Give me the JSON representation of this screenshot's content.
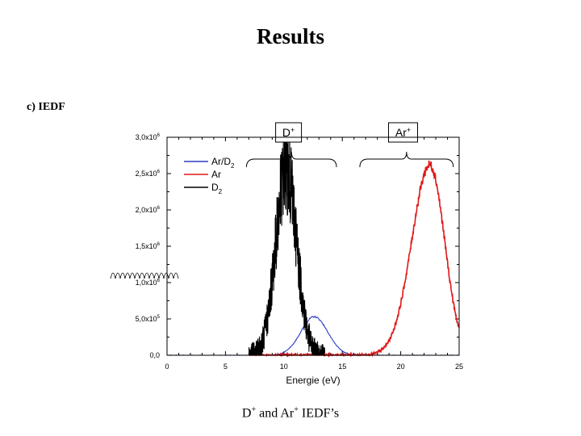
{
  "slide": {
    "title": "Results",
    "subtitle": "c) IEDF",
    "caption_text": "and",
    "caption_d": "D",
    "caption_ar": "Ar",
    "caption_plus": "+",
    "caption_end": "IEDF’s"
  },
  "chart_data": {
    "type": "line",
    "title": "",
    "xlabel": "Energie (eV)",
    "ylabel": "",
    "xlim": [
      0,
      25
    ],
    "ylim": [
      0,
      3000000
    ],
    "grid": false,
    "legend_position": "top-left",
    "x_ticks": [
      0,
      5,
      10,
      15,
      20,
      25
    ],
    "x_tick_labels": [
      "0",
      "5",
      "10",
      "15",
      "20",
      "25"
    ],
    "y_ticks": [
      0,
      500000,
      1000000,
      1500000,
      2000000,
      2500000,
      3000000
    ],
    "y_tick_labels": [
      {
        "mantissa": "0,0",
        "exp": ""
      },
      {
        "mantissa": "5,0x10",
        "exp": "5"
      },
      {
        "mantissa": "1,0x10",
        "exp": "6"
      },
      {
        "mantissa": "1,5x10",
        "exp": "6"
      },
      {
        "mantissa": "2,0x10",
        "exp": "6"
      },
      {
        "mantissa": "2,5x10",
        "exp": "6"
      },
      {
        "mantissa": "3,0x10",
        "exp": "6"
      }
    ],
    "series": [
      {
        "name": "Ar/D",
        "subscript": "2",
        "color": "#2b3fc4",
        "shape": "gauss",
        "center": 12.6,
        "sigma": 1.15,
        "peak": 530000,
        "noise": 0.015
      },
      {
        "name": "Ar",
        "subscript": "",
        "color": "#e01818",
        "shape": "skewed",
        "center": 22.5,
        "sigma_left": 1.55,
        "sigma_right": 1.25,
        "peak": 2620000,
        "x_start": 7.0,
        "x_end": 25.0,
        "noise": 0.02
      },
      {
        "name": "D",
        "subscript": "2",
        "color": "#000000",
        "shape": "gauss",
        "center": 10.2,
        "sigma": 0.9,
        "peak": 2550000,
        "x_start": 7.0,
        "x_end": 13.5,
        "noise": 0.18
      }
    ],
    "annotations": [
      {
        "label": "D",
        "sup": "+",
        "range": [
          6.8,
          14.5
        ],
        "label_x": 10.4
      },
      {
        "label": "Ar",
        "sup": "+",
        "range": [
          16.5,
          24.5
        ],
        "label_x": 20.2
      }
    ]
  }
}
